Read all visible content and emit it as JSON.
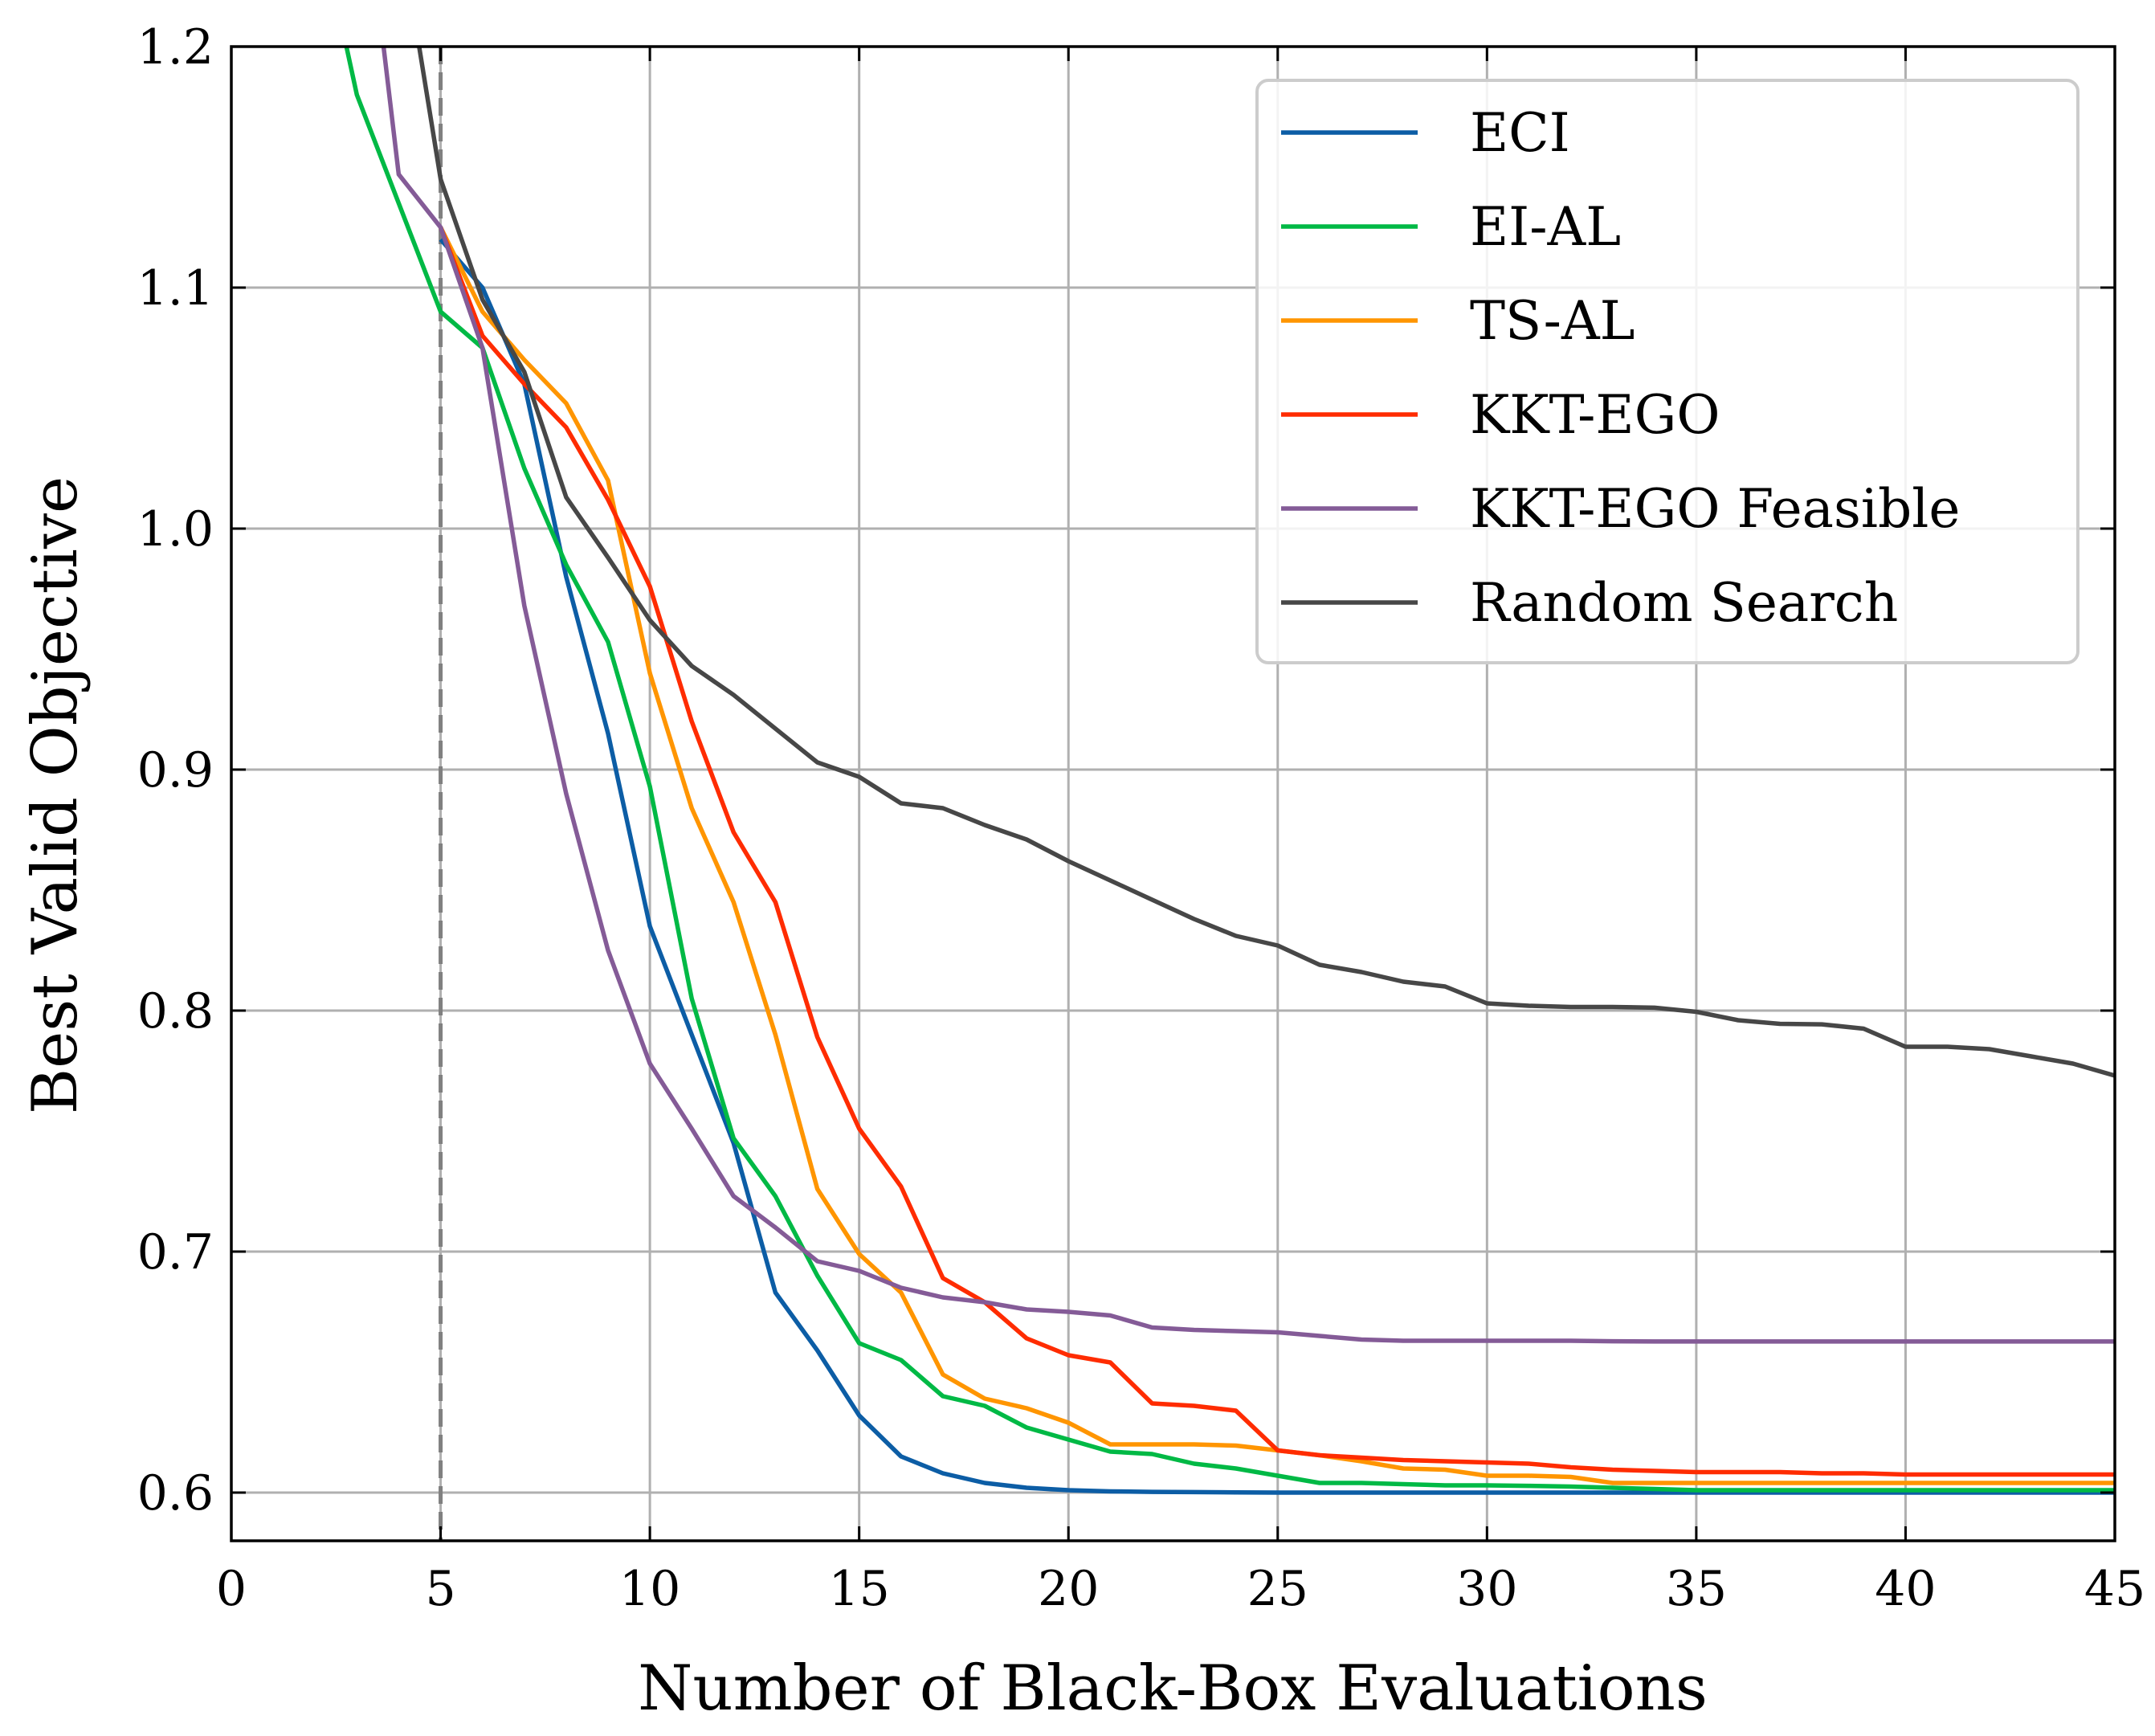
{
  "chart_data": {
    "type": "line",
    "title": "",
    "xlabel": "Number of Black-Box Evaluations",
    "ylabel": "Best Valid Objective",
    "xlim": [
      0,
      45
    ],
    "ylim": [
      0.58,
      1.2
    ],
    "xticks": [
      0,
      5,
      10,
      15,
      20,
      25,
      30,
      35,
      40,
      45
    ],
    "yticks": [
      0.6,
      0.7,
      0.8,
      0.9,
      1.0,
      1.1,
      1.2
    ],
    "xtick_labels": [
      "0",
      "5",
      "10",
      "15",
      "20",
      "25",
      "30",
      "35",
      "40",
      "45"
    ],
    "ytick_labels": [
      "0.6",
      "0.7",
      "0.8",
      "0.9",
      "1.0",
      "1.1",
      "1.2"
    ],
    "grid": true,
    "legend_position": "top-right",
    "vline": {
      "x": 5,
      "color": "#808080",
      "style": "dashed"
    },
    "series": [
      {
        "name": "ECI",
        "color": "#0c5da5",
        "x": [
          5,
          6,
          7,
          8,
          9,
          10,
          11,
          12,
          13,
          14,
          15,
          16,
          17,
          18,
          19,
          20,
          21,
          22,
          23,
          24,
          25,
          26,
          27,
          28,
          29,
          30,
          31,
          32,
          33,
          34,
          35,
          36,
          37,
          38,
          39,
          40,
          41,
          42,
          43,
          44,
          45
        ],
        "y": [
          1.12,
          1.1,
          1.06,
          0.98,
          0.915,
          0.835,
          0.79,
          0.745,
          0.683,
          0.659,
          0.632,
          0.615,
          0.608,
          0.604,
          0.602,
          0.601,
          0.6005,
          0.6003,
          0.6002,
          0.6001,
          0.6,
          0.6,
          0.6,
          0.6,
          0.6,
          0.6,
          0.6,
          0.6,
          0.6,
          0.6,
          0.6,
          0.6,
          0.6,
          0.6,
          0.6,
          0.6,
          0.6,
          0.6,
          0.6,
          0.6,
          0.6
        ]
      },
      {
        "name": "EI-AL",
        "color": "#00b945",
        "x": [
          2.5,
          3,
          4,
          5,
          6,
          7,
          8,
          9,
          10,
          11,
          12,
          13,
          14,
          15,
          16,
          17,
          18,
          19,
          20,
          21,
          22,
          23,
          24,
          25,
          26,
          27,
          28,
          29,
          30,
          31,
          32,
          33,
          34,
          35,
          36,
          37,
          38,
          39,
          40,
          41,
          42,
          43,
          44,
          45
        ],
        "y": [
          1.22,
          1.18,
          1.135,
          1.09,
          1.075,
          1.025,
          0.985,
          0.953,
          0.893,
          0.805,
          0.747,
          0.723,
          0.69,
          0.662,
          0.655,
          0.64,
          0.636,
          0.627,
          0.622,
          0.617,
          0.616,
          0.612,
          0.61,
          0.607,
          0.604,
          0.604,
          0.6035,
          0.603,
          0.603,
          0.6028,
          0.6025,
          0.602,
          0.6015,
          0.601,
          0.601,
          0.601,
          0.601,
          0.601,
          0.601,
          0.601,
          0.601,
          0.601,
          0.601,
          0.601
        ]
      },
      {
        "name": "TS-AL",
        "color": "#ff9500",
        "x": [
          5,
          6,
          7,
          8,
          9,
          10,
          11,
          12,
          13,
          14,
          15,
          16,
          17,
          18,
          19,
          20,
          21,
          22,
          23,
          24,
          25,
          26,
          27,
          28,
          29,
          30,
          31,
          32,
          33,
          34,
          35,
          36,
          37,
          38,
          39,
          40,
          41,
          42,
          43,
          44,
          45
        ],
        "y": [
          1.125,
          1.09,
          1.07,
          1.052,
          1.02,
          0.94,
          0.884,
          0.845,
          0.79,
          0.726,
          0.699,
          0.683,
          0.649,
          0.639,
          0.635,
          0.629,
          0.62,
          0.62,
          0.62,
          0.6195,
          0.6175,
          0.6155,
          0.613,
          0.61,
          0.6095,
          0.607,
          0.607,
          0.6065,
          0.604,
          0.604,
          0.604,
          0.604,
          0.604,
          0.604,
          0.604,
          0.604,
          0.604,
          0.604,
          0.604,
          0.604,
          0.604
        ]
      },
      {
        "name": "KKT-EGO",
        "color": "#ff2c00",
        "x": [
          5,
          6,
          7,
          8,
          9,
          10,
          11,
          12,
          13,
          14,
          15,
          16,
          17,
          18,
          19,
          20,
          21,
          22,
          23,
          24,
          25,
          26,
          27,
          28,
          29,
          30,
          31,
          32,
          33,
          34,
          35,
          36,
          37,
          38,
          39,
          40,
          41,
          42,
          43,
          44,
          45
        ],
        "y": [
          1.125,
          1.08,
          1.06,
          1.042,
          1.012,
          0.976,
          0.92,
          0.874,
          0.845,
          0.789,
          0.751,
          0.727,
          0.689,
          0.679,
          0.664,
          0.657,
          0.654,
          0.637,
          0.636,
          0.634,
          0.6175,
          0.6155,
          0.6145,
          0.6135,
          0.613,
          0.6125,
          0.612,
          0.6105,
          0.6095,
          0.609,
          0.6085,
          0.6085,
          0.6085,
          0.608,
          0.608,
          0.6075,
          0.6075,
          0.6075,
          0.6075,
          0.6075,
          0.6075
        ]
      },
      {
        "name": "KKT-EGO Feasible",
        "color": "#845b97",
        "x": [
          3.5,
          4,
          5,
          6,
          7,
          8,
          9,
          10,
          11,
          12,
          13,
          14,
          15,
          16,
          17,
          18,
          19,
          20,
          21,
          22,
          23,
          24,
          25,
          26,
          27,
          28,
          29,
          30,
          31,
          32,
          33,
          34,
          35,
          36,
          37,
          38,
          39,
          40,
          41,
          42,
          43,
          44,
          45
        ],
        "y": [
          1.22,
          1.147,
          1.125,
          1.075,
          0.968,
          0.89,
          0.825,
          0.778,
          0.751,
          0.723,
          0.71,
          0.696,
          0.692,
          0.685,
          0.681,
          0.679,
          0.676,
          0.675,
          0.6735,
          0.6685,
          0.6675,
          0.667,
          0.6665,
          0.665,
          0.6635,
          0.663,
          0.663,
          0.663,
          0.663,
          0.663,
          0.6628,
          0.6627,
          0.6627,
          0.6627,
          0.6627,
          0.6627,
          0.6627,
          0.6627,
          0.6627,
          0.6627,
          0.6627,
          0.6627,
          0.6627
        ]
      },
      {
        "name": "Random Search",
        "color": "#474747",
        "x": [
          4.3,
          5,
          6,
          7,
          8,
          9,
          10,
          11,
          12,
          13,
          14,
          15,
          16,
          17,
          18,
          19,
          20,
          21,
          22,
          23,
          24,
          25,
          26,
          27,
          28,
          29,
          30,
          31,
          32,
          33,
          34,
          35,
          36,
          37,
          38,
          39,
          40,
          41,
          42,
          43,
          44,
          45
        ],
        "y": [
          1.22,
          1.145,
          1.095,
          1.065,
          1.013,
          0.988,
          0.962,
          0.943,
          0.931,
          0.917,
          0.903,
          0.897,
          0.886,
          0.884,
          0.877,
          0.871,
          0.862,
          0.854,
          0.846,
          0.838,
          0.831,
          0.827,
          0.819,
          0.816,
          0.812,
          0.81,
          0.803,
          0.802,
          0.8015,
          0.8015,
          0.8012,
          0.7995,
          0.796,
          0.7945,
          0.7943,
          0.7925,
          0.785,
          0.785,
          0.784,
          0.781,
          0.778,
          0.773
        ]
      }
    ]
  }
}
